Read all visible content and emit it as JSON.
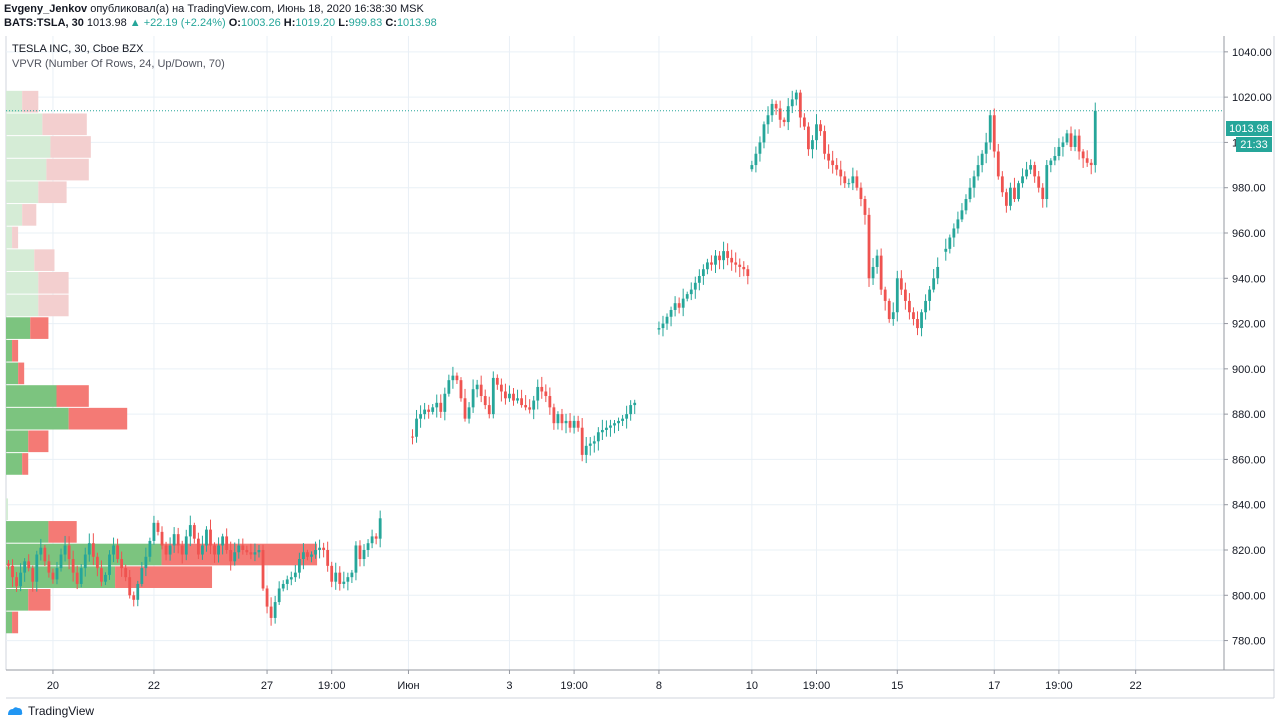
{
  "header": {
    "publisher": "Evgeny_Jenkov",
    "published_text": "опубликовал(а) на TradingView.com, Июнь 18, 2020 16:38:30 MSK",
    "symbol": "BATS:TSLA, 30",
    "last": "1013.98",
    "change": "+22.19 (+2.24%)",
    "o_label": "O:",
    "o_value": "1003.26",
    "h_label": "H:",
    "h_value": "1019.20",
    "l_label": "L:",
    "l_value": "999.83",
    "c_label": "C:",
    "c_value": "1013.98"
  },
  "legend": {
    "title": "TESLA INC, 30, Cboe BZX",
    "indicator": "VPVR (Number Of Rows, 24, Up/Down, 70)"
  },
  "price_label": {
    "value": "1013.98",
    "countdown": "21:33"
  },
  "footer": {
    "brand": "TradingView"
  },
  "colors": {
    "up": "#26a69a",
    "down": "#ef5350",
    "vp_up": "#7cc47f",
    "vp_down": "#f47a75",
    "vp_up_light": "#d5ecd6",
    "vp_down_light": "#f3cfcf",
    "grid": "#e9f0f6",
    "price_line": "#26a69a"
  },
  "chart_data": {
    "type": "candlestick",
    "y_axis": {
      "range": [
        767,
        1047
      ],
      "ticks": [
        780,
        800,
        820,
        840,
        860,
        880,
        900,
        920,
        940,
        960,
        980,
        1000,
        1020,
        1040
      ],
      "tick_labels": [
        "780.00",
        "800.00",
        "820.00",
        "840.00",
        "860.00",
        "880.00",
        "900.00",
        "920.00",
        "940.00",
        "960.00",
        "980.00",
        "1000.00",
        "1020.00",
        "1040.00"
      ]
    },
    "x_axis": {
      "tick_labels": [
        "20",
        "22",
        "27",
        "19:00",
        "Июн",
        "3",
        "19:00",
        "8",
        "10",
        "19:00",
        "15",
        "17",
        "19:00",
        "22"
      ],
      "tick_index": [
        11,
        36,
        64,
        80,
        99,
        124,
        140,
        161,
        184,
        200,
        220,
        244,
        260,
        279
      ]
    },
    "last_price": 1013.98,
    "series": [
      {
        "segment": "May 19-28",
        "start_index": 0,
        "closes": [
          813,
          808,
          804,
          810,
          815,
          812,
          806,
          818,
          821,
          815,
          810,
          807,
          812,
          818,
          822,
          816,
          810,
          805,
          812,
          818,
          823,
          817,
          812,
          806,
          809,
          818,
          822,
          816,
          812,
          808,
          800,
          798,
          805,
          812,
          817,
          824,
          832,
          828,
          822,
          818,
          822,
          827,
          822,
          818,
          826,
          831,
          825,
          818,
          822,
          829,
          822,
          818,
          822,
          826,
          820,
          815,
          819,
          822,
          820,
          819,
          818,
          819,
          820,
          803,
          795,
          790,
          797,
          803,
          805,
          807,
          808,
          810,
          816,
          819,
          817,
          818,
          820,
          821,
          820,
          813,
          806,
          810,
          805,
          806,
          808,
          810,
          822,
          816,
          820,
          823,
          826,
          825,
          834
        ]
      },
      {
        "segment": "Jun 1-5",
        "start_index": 100,
        "closes": [
          870,
          878,
          880,
          882,
          881,
          883,
          885,
          881,
          889,
          895,
          897,
          895,
          887,
          878,
          883,
          891,
          893,
          888,
          884,
          880,
          896,
          893,
          890,
          887,
          889,
          886,
          887,
          884,
          883,
          882,
          886,
          892,
          890,
          888,
          883,
          876,
          880,
          876,
          877,
          874,
          877,
          874,
          862,
          866,
          867,
          868,
          872,
          873,
          874,
          875,
          876,
          877,
          878,
          880,
          884,
          885
        ]
      },
      {
        "segment": "Jun 8-9",
        "start_index": 161,
        "closes": [
          918,
          920,
          923,
          926,
          929,
          927,
          931,
          933,
          935,
          938,
          941,
          944,
          947,
          946,
          950,
          948,
          952,
          949,
          947,
          946,
          945,
          944,
          941
        ]
      },
      {
        "segment": "Jun 10-15",
        "start_index": 184,
        "closes": [
          990,
          995,
          1000,
          1008,
          1012,
          1017,
          1015,
          1010,
          1009,
          1016,
          1019,
          1022,
          1011,
          1007,
          997,
          1001,
          1008,
          1005,
          995,
          992,
          990,
          988,
          985,
          982,
          982,
          985,
          980,
          975,
          968,
          940,
          945,
          950,
          935,
          930,
          922,
          925,
          940,
          935,
          930,
          925,
          922,
          918,
          925,
          930,
          935,
          940,
          945
        ]
      },
      {
        "segment": "Jun 15-17",
        "start_index": 232,
        "closes": [
          953,
          958,
          962,
          966,
          970,
          975,
          980,
          985,
          990,
          995,
          1000,
          1012,
          996,
          985,
          978,
          972,
          980,
          975,
          982,
          985,
          988,
          990,
          985,
          980,
          975,
          990,
          992,
          994,
          998,
          1000,
          1004,
          998,
          1003,
          996,
          993,
          991,
          990,
          1013.98
        ]
      }
    ],
    "volume_profile": {
      "price_bins": [
        1018,
        1008,
        998,
        988,
        978,
        968,
        958,
        948,
        938,
        928,
        918,
        908,
        898,
        888,
        878,
        868,
        858,
        848,
        838,
        828,
        818,
        808,
        798,
        788
      ],
      "up": [
        8,
        18,
        22,
        20,
        16,
        8,
        3,
        14,
        16,
        16,
        12,
        3,
        6,
        25,
        31,
        11,
        8,
        0,
        1,
        21,
        77,
        54,
        11,
        3
      ],
      "down": [
        8,
        22,
        20,
        21,
        14,
        7,
        3,
        10,
        15,
        15,
        9,
        3,
        3,
        16,
        29,
        10,
        3,
        0,
        0,
        14,
        77,
        48,
        11,
        3
      ],
      "highlighted": [
        false,
        false,
        false,
        false,
        false,
        false,
        false,
        false,
        false,
        false,
        true,
        true,
        true,
        true,
        true,
        true,
        true,
        false,
        false,
        true,
        true,
        true,
        true,
        true
      ]
    }
  }
}
